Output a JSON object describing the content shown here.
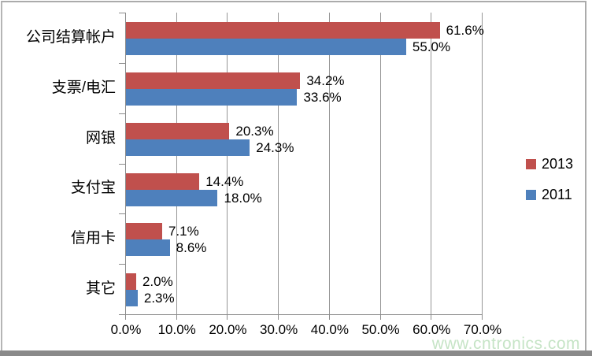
{
  "chart_data": {
    "type": "bar",
    "orientation": "horizontal",
    "categories": [
      "公司结算帐户",
      "支票/电汇",
      "网银",
      "支付宝",
      "信用卡",
      "其它"
    ],
    "series": [
      {
        "name": "2013",
        "color": "#C0504D",
        "values": [
          61.6,
          34.2,
          20.3,
          14.4,
          7.1,
          2.0
        ],
        "labels": [
          "61.6%",
          "34.2%",
          "20.3%",
          "14.4%",
          "7.1%",
          "2.0%"
        ]
      },
      {
        "name": "2011",
        "color": "#4E80BC",
        "values": [
          55.0,
          33.6,
          24.3,
          18.0,
          8.6,
          2.3
        ],
        "labels": [
          "55.0%",
          "33.6%",
          "24.3%",
          "18.0%",
          "8.6%",
          "2.3%"
        ]
      }
    ],
    "xlim": [
      0,
      70
    ],
    "x_ticks": [
      {
        "value": 0,
        "label": "0.0%"
      },
      {
        "value": 10,
        "label": "10.0%"
      },
      {
        "value": 20,
        "label": "20.0%"
      },
      {
        "value": 30,
        "label": "30.0%"
      },
      {
        "value": 40,
        "label": "40.0%"
      },
      {
        "value": 50,
        "label": "50.0%"
      },
      {
        "value": 60,
        "label": "60.0%"
      },
      {
        "value": 70,
        "label": "70.0%"
      }
    ],
    "grid": true,
    "legend_position": "right",
    "value_labels_shown": true,
    "title": "",
    "xlabel": "",
    "ylabel": ""
  },
  "watermark": {
    "text": "www.cntronics.com",
    "color": "#c6e4c6"
  },
  "colors": {
    "axis": "#8c8c8c",
    "grid": "#959595",
    "text": "#000000",
    "frame_side": "#ababab",
    "frame_bottom": "#8a8a8a"
  }
}
